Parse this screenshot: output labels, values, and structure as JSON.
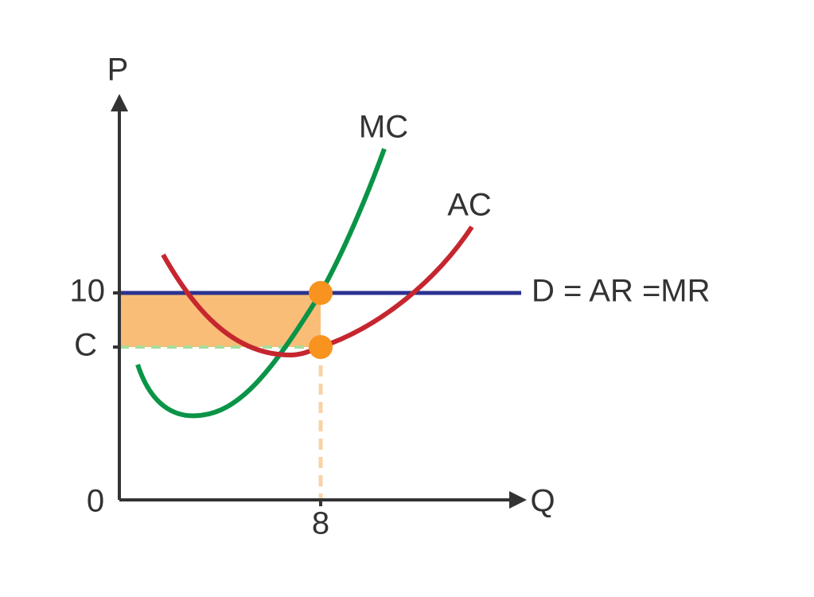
{
  "axes": {
    "y_label": "P",
    "x_label": "Q",
    "origin": "0"
  },
  "y_ticks": [
    "10",
    "C"
  ],
  "x_ticks": [
    "8"
  ],
  "curves": {
    "mc": "MC",
    "ac": "AC",
    "demand": "D = AR =MR"
  }
}
